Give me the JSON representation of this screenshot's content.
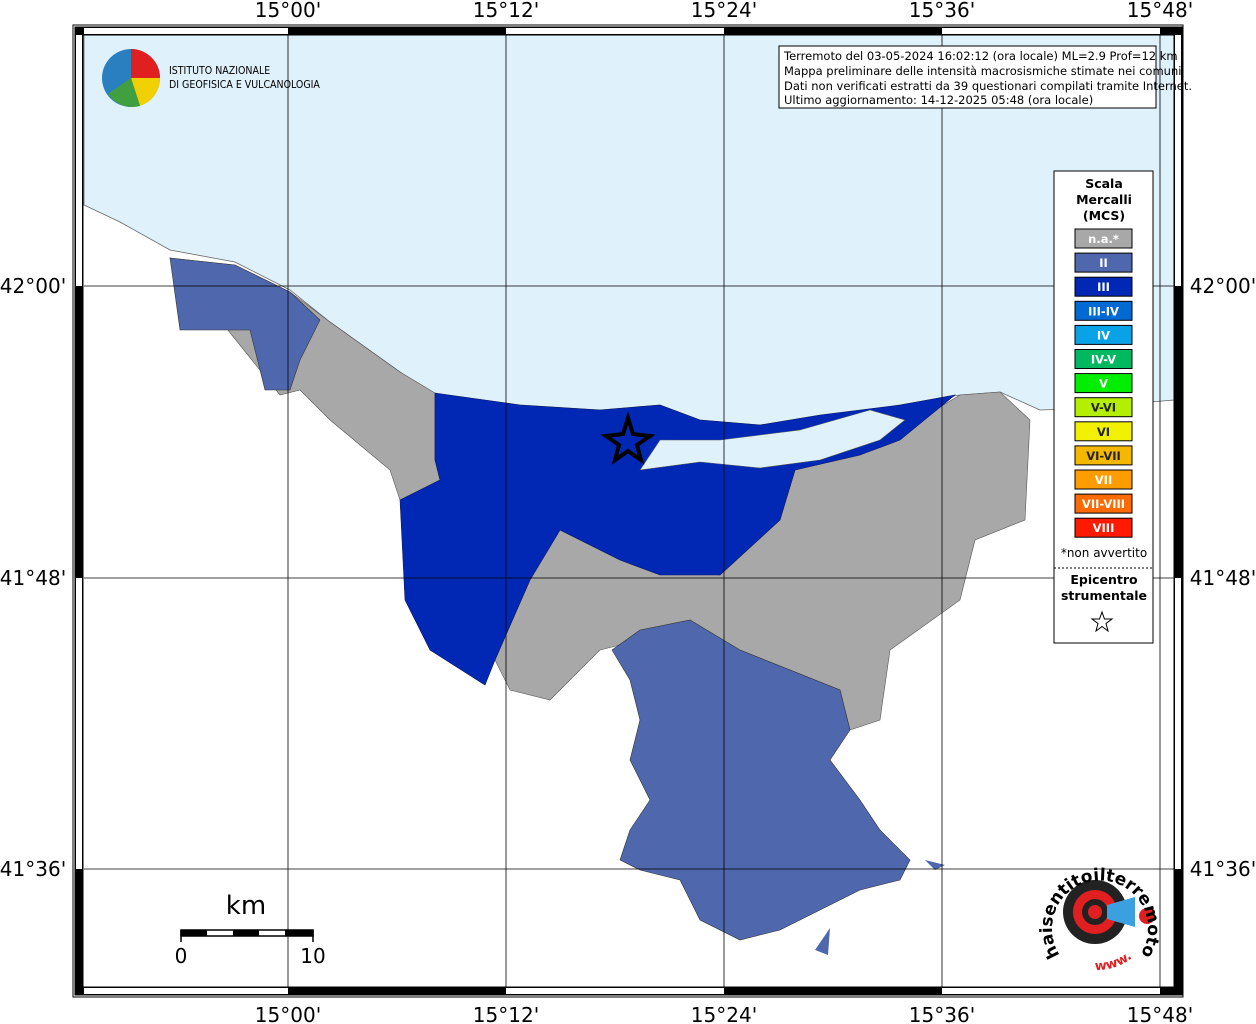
{
  "frame": {
    "lon_labels": [
      "15°00'",
      "15°12'",
      "15°24'",
      "15°36'",
      "15°48'"
    ],
    "lat_labels": [
      "42°00'",
      "41°48'",
      "41°36'"
    ]
  },
  "info": {
    "lines": [
      "Terremoto del 03-05-2024 16:02:12 (ora locale) ML=2.9 Prof=12 km",
      "Mappa preliminare delle intensità macrosismiche stimate nei comuni",
      "Dati non verificati estratti da 39 questionari compilati tramite Internet.",
      "Ultimo aggiornamento: 14-12-2025 05:48 (ora locale)"
    ]
  },
  "logo": {
    "lines": [
      "ISTITUTO NAZIONALE",
      "DI GEOFISICA E VULCANOLOGIA"
    ]
  },
  "legend": {
    "title": [
      "Scala",
      "Mercalli",
      "(MCS)"
    ],
    "classes": [
      {
        "label": "n.a.*",
        "color": "#a8a8a8"
      },
      {
        "label": "II",
        "color": "#4f67ad"
      },
      {
        "label": "III",
        "color": "#0028b5"
      },
      {
        "label": "III-IV",
        "color": "#0069d2"
      },
      {
        "label": "IV",
        "color": "#0aa2e6"
      },
      {
        "label": "IV-V",
        "color": "#00b860"
      },
      {
        "label": "V",
        "color": "#00ee00"
      },
      {
        "label": "V-VI",
        "color": "#b4ee00"
      },
      {
        "label": "VI",
        "color": "#f0f000"
      },
      {
        "label": "VI-VII",
        "color": "#f5b800"
      },
      {
        "label": "VII",
        "color": "#ff9c00"
      },
      {
        "label": "VII-VIII",
        "color": "#ff6a00"
      },
      {
        "label": "VIII",
        "color": "#ff1a00"
      }
    ],
    "note": "*non avvertito",
    "epicenter": [
      "Epicentro",
      "strumentale"
    ]
  },
  "scale_bar": {
    "unit": "km",
    "labels": [
      "0",
      "10"
    ]
  },
  "stamp": {
    "site": "haisentitoilterremoto.it",
    "prefix": "www."
  }
}
